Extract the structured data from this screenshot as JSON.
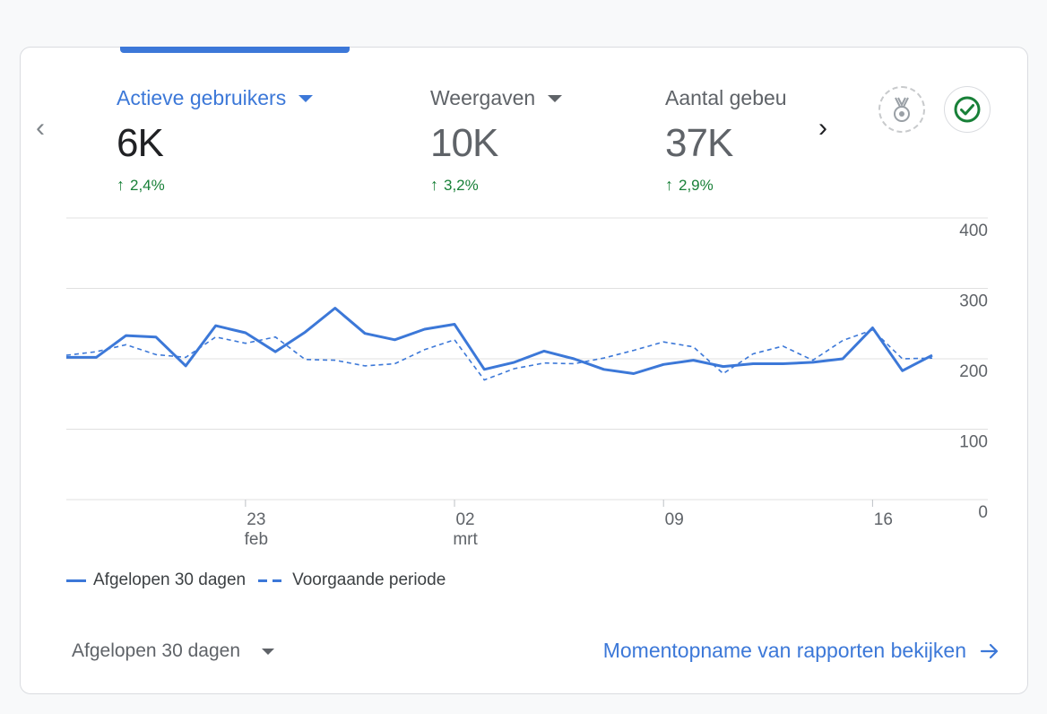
{
  "metrics": [
    {
      "label": "Actieve gebruikers",
      "value": "6K",
      "delta": "2,4%"
    },
    {
      "label": "Weergaven",
      "value": "10K",
      "delta": "3,2%"
    },
    {
      "label": "Aantal gebeu",
      "value": "37K",
      "delta": "2,9%"
    }
  ],
  "icons": {
    "prev": "chevron-left-icon",
    "next": "chevron-right-icon",
    "medal": "medal-icon",
    "check": "check-circle-icon",
    "arrow": "arrow-right-icon"
  },
  "colors": {
    "accent": "#3c78d8",
    "positive": "#188038",
    "grid": "#e0e0e0"
  },
  "chart_data": {
    "type": "line",
    "x_ticks": [
      {
        "label": "23",
        "sub": "feb",
        "index": 6
      },
      {
        "label": "02",
        "sub": "mrt",
        "index": 13
      },
      {
        "label": "09",
        "sub": "",
        "index": 20
      },
      {
        "label": "16",
        "sub": "",
        "index": 27
      }
    ],
    "y_ticks": [
      0,
      100,
      200,
      300,
      400
    ],
    "ylim": [
      0,
      400
    ],
    "series": [
      {
        "name": "Afgelopen 30 dagen",
        "style": "solid",
        "values": [
          202,
          202,
          233,
          231,
          190,
          247,
          237,
          210,
          238,
          272,
          236,
          227,
          242,
          249,
          185,
          195,
          211,
          200,
          185,
          179,
          192,
          198,
          189,
          193,
          193,
          195,
          200,
          244,
          183,
          205
        ]
      },
      {
        "name": "Voorgaande periode",
        "style": "dashed",
        "values": [
          205,
          210,
          220,
          206,
          202,
          231,
          222,
          231,
          199,
          198,
          190,
          193,
          213,
          227,
          170,
          186,
          194,
          193,
          201,
          212,
          224,
          217,
          179,
          207,
          218,
          198,
          226,
          241,
          200,
          201
        ]
      }
    ]
  },
  "legend": {
    "current": "Afgelopen 30 dagen",
    "previous": "Voorgaande periode"
  },
  "footer": {
    "period": "Afgelopen 30 dagen",
    "snapshot": "Momentopname van rapporten bekijken"
  }
}
